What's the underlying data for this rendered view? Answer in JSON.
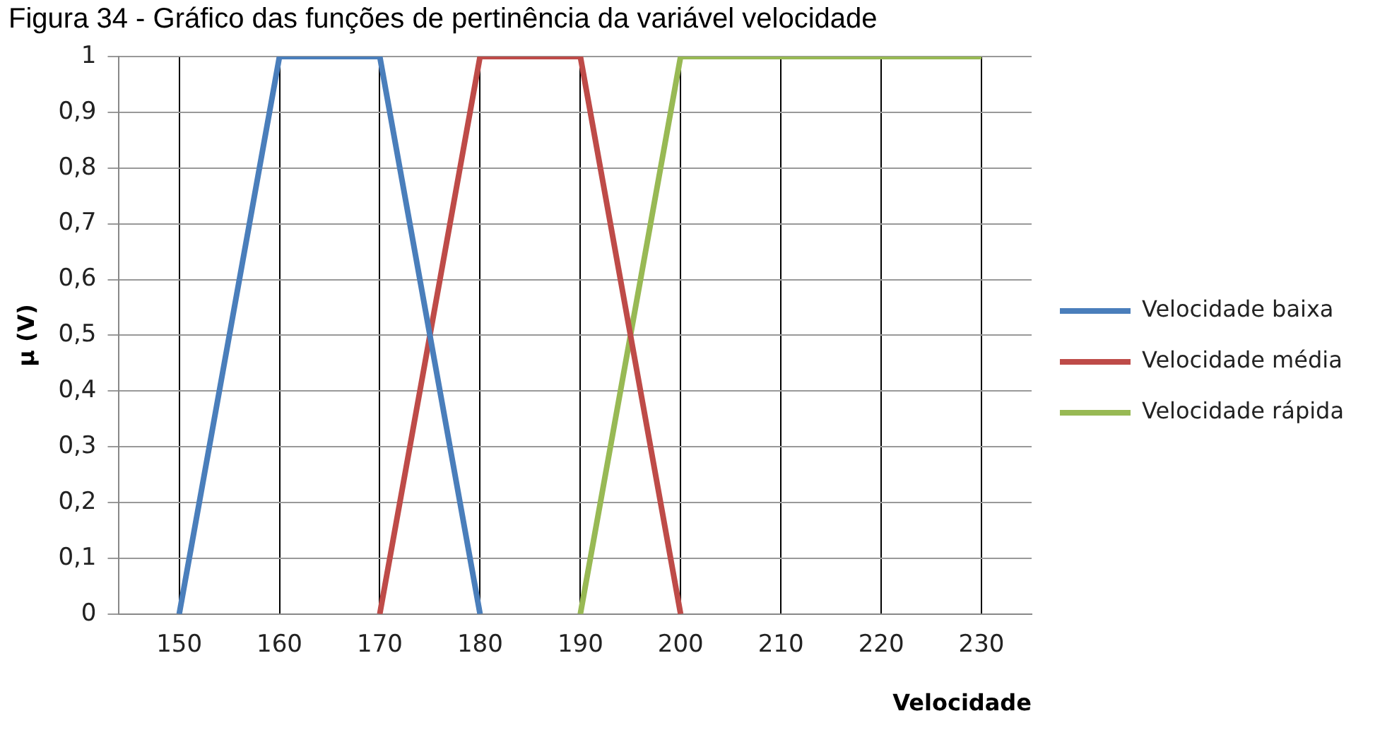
{
  "chart_data": {
    "type": "line",
    "title": "Figura 34 - Gráfico das funções de pertinência da variável velocidade",
    "xlabel": "Velocidade",
    "ylabel": "μ (V)",
    "series": [
      {
        "name": "Velocidade baixa",
        "color": "#4a7ebb",
        "x": [
          150,
          160,
          170,
          180
        ],
        "values": [
          0,
          1,
          1,
          0
        ]
      },
      {
        "name": "Velocidade média",
        "color": "#be4b48",
        "x": [
          170,
          180,
          190,
          200
        ],
        "values": [
          0,
          1,
          1,
          0
        ]
      },
      {
        "name": "Velocidade rápida",
        "color": "#98b954",
        "x": [
          190,
          200,
          210,
          220,
          230
        ],
        "values": [
          0,
          1,
          1,
          1,
          1
        ]
      }
    ],
    "xlim": [
      144,
      235
    ],
    "xticks": [
      150,
      160,
      170,
      180,
      190,
      200,
      210,
      220,
      230
    ],
    "ylim": [
      0,
      1
    ],
    "yticks": [
      {
        "value": 0,
        "label": "0"
      },
      {
        "value": 0.1,
        "label": "0,1"
      },
      {
        "value": 0.2,
        "label": "0,2"
      },
      {
        "value": 0.3,
        "label": "0,3"
      },
      {
        "value": 0.4,
        "label": "0,4"
      },
      {
        "value": 0.5,
        "label": "0,5"
      },
      {
        "value": 0.6,
        "label": "0,6"
      },
      {
        "value": 0.7,
        "label": "0,7"
      },
      {
        "value": 0.8,
        "label": "0,8"
      },
      {
        "value": 0.9,
        "label": "0,9"
      },
      {
        "value": 1,
        "label": "1"
      }
    ],
    "grid": true,
    "legend": "right",
    "marker": "none",
    "line_style": "solid"
  }
}
